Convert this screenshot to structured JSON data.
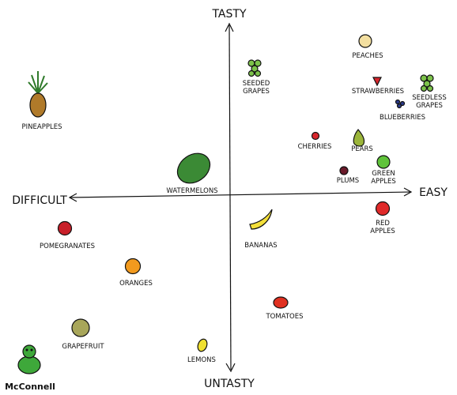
{
  "axes": {
    "top": "TASTY",
    "bottom": "UNTASTY",
    "left": "DIFFICULT",
    "right": "EASY"
  },
  "nodes": [
    {
      "label": [
        "PEACHES"
      ]
    },
    {
      "label": [
        "SEEDED",
        "GRAPES"
      ]
    },
    {
      "label": [
        "STRAWBERRIES"
      ]
    },
    {
      "label": [
        "SEEDLESS",
        "GRAPES"
      ]
    },
    {
      "label": [
        "BLUEBERRIES"
      ]
    },
    {
      "label": [
        "PINEAPPLES"
      ]
    },
    {
      "label": [
        "CHERRIES"
      ]
    },
    {
      "label": [
        "PEARS"
      ]
    },
    {
      "label": [
        "GREEN",
        "APPLES"
      ]
    },
    {
      "label": [
        "PLUMS"
      ]
    },
    {
      "label": [
        "WATERMELONS"
      ]
    },
    {
      "label": [
        "RED",
        "APPLES"
      ]
    },
    {
      "label": [
        "POMEGRANATES"
      ]
    },
    {
      "label": [
        "BANANAS"
      ]
    },
    {
      "label": [
        "ORANGES"
      ]
    },
    {
      "label": [
        "TOMATOES"
      ]
    },
    {
      "label": [
        "GRAPEFRUIT"
      ]
    },
    {
      "label": [
        "LEMONS"
      ]
    }
  ],
  "signature": "McConnell"
}
